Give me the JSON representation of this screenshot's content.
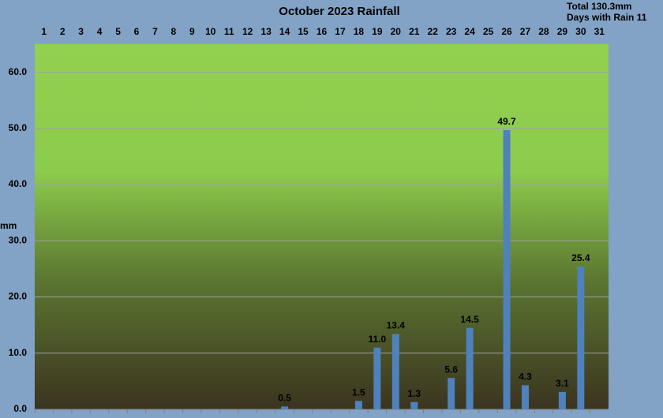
{
  "chart_data": {
    "type": "bar",
    "title": "October 2023 Rainfall",
    "annotations": [
      "Total 130.3mm",
      "Days with Rain 11"
    ],
    "y_label": "mm",
    "categories": [
      "1",
      "2",
      "3",
      "4",
      "5",
      "6",
      "7",
      "8",
      "9",
      "10",
      "11",
      "12",
      "13",
      "14",
      "15",
      "16",
      "17",
      "18",
      "19",
      "20",
      "21",
      "22",
      "23",
      "24",
      "25",
      "26",
      "27",
      "28",
      "29",
      "30",
      "31"
    ],
    "values": [
      null,
      null,
      null,
      null,
      null,
      null,
      null,
      null,
      null,
      null,
      null,
      null,
      null,
      0.5,
      null,
      null,
      null,
      1.5,
      11.0,
      13.4,
      1.3,
      null,
      5.6,
      14.5,
      null,
      49.7,
      4.3,
      null,
      3.1,
      25.4,
      null
    ],
    "value_labels": [
      null,
      null,
      null,
      null,
      null,
      null,
      null,
      null,
      null,
      null,
      null,
      null,
      null,
      "0.5",
      null,
      null,
      null,
      "1.5",
      "11.0",
      "13.4",
      "1.3",
      null,
      "5.6",
      "14.5",
      null,
      "49.7",
      "4.3",
      null,
      "3.1",
      "25.4",
      null
    ],
    "color": "#4f81bd",
    "ylim": [
      0,
      65
    ],
    "yticks": [
      {
        "value": 0,
        "label": "0.0"
      },
      {
        "value": 10,
        "label": "10.0"
      },
      {
        "value": 20,
        "label": "20.0"
      },
      {
        "value": 30,
        "label": "30.0"
      },
      {
        "value": 40,
        "label": "40.0"
      },
      {
        "value": 50,
        "label": "50.0"
      },
      {
        "value": 60,
        "label": "60.0"
      }
    ],
    "grid": true
  }
}
